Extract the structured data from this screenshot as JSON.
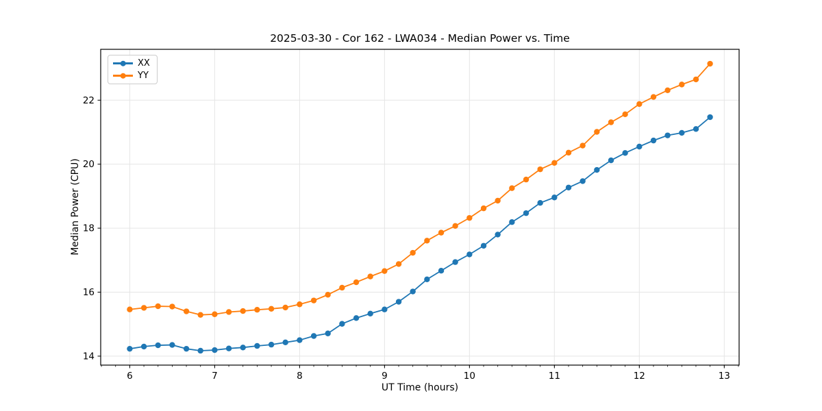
{
  "chart_data": {
    "type": "line",
    "title": "2025-03-30 - Cor 162 - LWA034 - Median Power vs. Time",
    "xlabel": "UT Time (hours)",
    "ylabel": "Median Power (CPU)",
    "x": [
      6.0,
      6.167,
      6.333,
      6.5,
      6.667,
      6.833,
      7.0,
      7.167,
      7.333,
      7.5,
      7.667,
      7.833,
      8.0,
      8.167,
      8.333,
      8.5,
      8.667,
      8.833,
      9.0,
      9.167,
      9.333,
      9.5,
      9.667,
      9.833,
      10.0,
      10.167,
      10.333,
      10.5,
      10.667,
      10.833,
      11.0,
      11.167,
      11.333,
      11.5,
      11.667,
      11.833,
      12.0,
      12.167,
      12.333,
      12.5,
      12.667,
      12.833
    ],
    "series": [
      {
        "name": "XX",
        "color": "#1f77b4",
        "values": [
          14.23,
          14.3,
          14.34,
          14.35,
          14.23,
          14.17,
          14.19,
          14.24,
          14.27,
          14.32,
          14.36,
          14.43,
          14.5,
          14.63,
          14.71,
          15.01,
          15.19,
          15.33,
          15.46,
          15.7,
          16.02,
          16.4,
          16.67,
          16.94,
          17.18,
          17.45,
          17.8,
          18.19,
          18.47,
          18.79,
          18.96,
          19.27,
          19.47,
          19.82,
          20.12,
          20.35,
          20.55,
          20.74,
          20.9,
          20.98,
          21.1,
          21.47
        ]
      },
      {
        "name": "YY",
        "color": "#ff7f0e",
        "values": [
          15.46,
          15.51,
          15.56,
          15.55,
          15.4,
          15.29,
          15.31,
          15.38,
          15.41,
          15.45,
          15.48,
          15.52,
          15.62,
          15.74,
          15.92,
          16.14,
          16.31,
          16.49,
          16.66,
          16.88,
          17.23,
          17.61,
          17.86,
          18.07,
          18.32,
          18.62,
          18.86,
          19.25,
          19.52,
          19.84,
          20.04,
          20.36,
          20.58,
          21.01,
          21.31,
          21.56,
          21.88,
          22.1,
          22.31,
          22.49,
          22.65,
          23.14
        ]
      }
    ],
    "xlim": [
      5.658,
      13.175
    ],
    "ylim": [
      13.72,
      23.59
    ],
    "xticks": [
      6,
      7,
      8,
      9,
      10,
      11,
      12,
      13
    ],
    "yticks": [
      14,
      16,
      18,
      20,
      22
    ],
    "x_minor_step": 0.1666667,
    "grid": true,
    "grid_color": "#e5e5e5",
    "axis_color": "#000000",
    "legend_position": "upper-left"
  }
}
